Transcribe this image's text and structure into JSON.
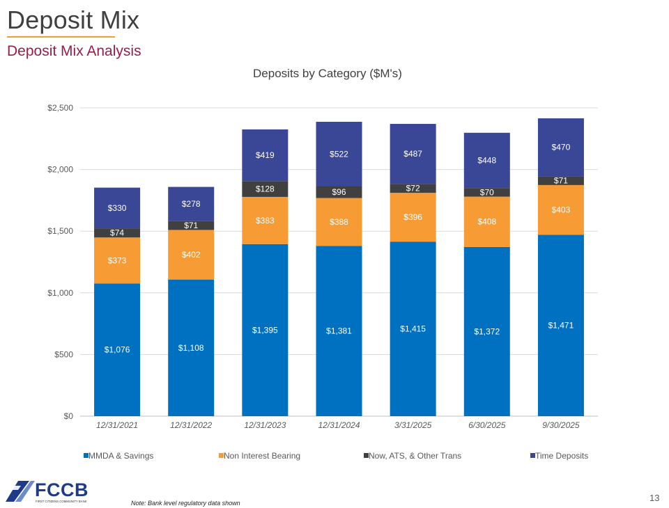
{
  "header": {
    "title": "Deposit Mix",
    "subtitle": "Deposit Mix Analysis"
  },
  "chart_data": {
    "type": "bar",
    "stacked": true,
    "title": "Deposits by Category ($M's)",
    "categories": [
      "12/31/2021",
      "12/31/2022",
      "12/31/2023",
      "12/31/2024",
      "3/31/2025",
      "6/30/2025",
      "9/30/2025"
    ],
    "series": [
      {
        "name": "MMDA & Savings",
        "color": "#0070C0",
        "values": [
          1076,
          1108,
          1395,
          1381,
          1415,
          1372,
          1471
        ],
        "labels": [
          "$1,076",
          "$1,108",
          "$1,395",
          "$1,381",
          "$1,415",
          "$1,372",
          "$1,471"
        ]
      },
      {
        "name": "Non Interest Bearing",
        "color": "#F79B35",
        "values": [
          373,
          402,
          383,
          388,
          396,
          408,
          403
        ],
        "labels": [
          "$373",
          "$402",
          "$383",
          "$388",
          "$396",
          "$408",
          "$403"
        ]
      },
      {
        "name": "Now, ATS, & Other Trans",
        "color": "#404040",
        "values": [
          74,
          71,
          128,
          96,
          72,
          70,
          71
        ],
        "labels": [
          "$74",
          "$71",
          "$128",
          "$96",
          "$72",
          "$70",
          "$71"
        ]
      },
      {
        "name": "Time Deposits",
        "color": "#3A4696",
        "values": [
          330,
          278,
          419,
          522,
          487,
          448,
          470
        ],
        "labels": [
          "$330",
          "$278",
          "$419",
          "$522",
          "$487",
          "$448",
          "$470"
        ]
      }
    ],
    "ylim": [
      0,
      2500
    ],
    "yticks": [
      0,
      500,
      1000,
      1500,
      2000,
      2500
    ],
    "ytick_labels": [
      "$0",
      "$500",
      "$1,000",
      "$1,500",
      "$2,000",
      "$2,500"
    ],
    "xlabel": "",
    "ylabel": "",
    "grid": true,
    "legend": "bottom"
  },
  "footer": {
    "logo_text": "FCCB",
    "logo_tagline": "FIRST CITIZENS COMMUNITY BANK",
    "note": "Note: Bank level regulatory data shown",
    "page_number": "13"
  }
}
